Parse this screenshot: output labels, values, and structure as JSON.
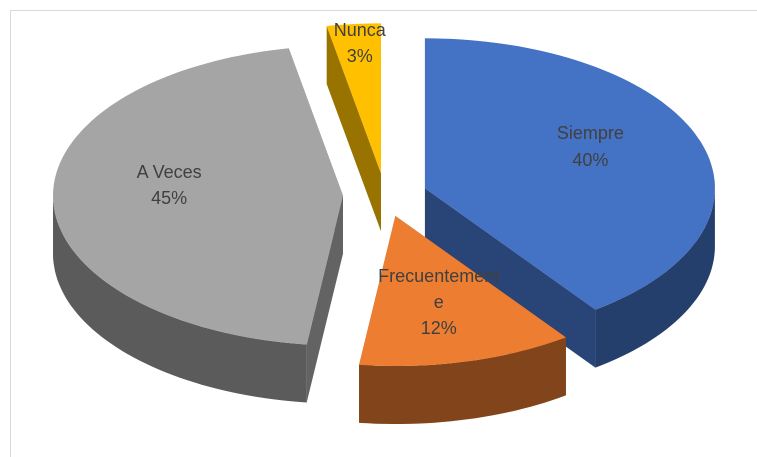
{
  "chart_data": {
    "type": "pie3d",
    "categories": [
      "Siempre",
      "Frecuentemente",
      "A Veces",
      "Nunca"
    ],
    "values": [
      40,
      12,
      45,
      3
    ],
    "value_labels": [
      "40%",
      "12%",
      "45%",
      "3%"
    ],
    "colors": [
      "#4472c4",
      "#ed7d31",
      "#a5a5a5",
      "#ffc000"
    ]
  }
}
